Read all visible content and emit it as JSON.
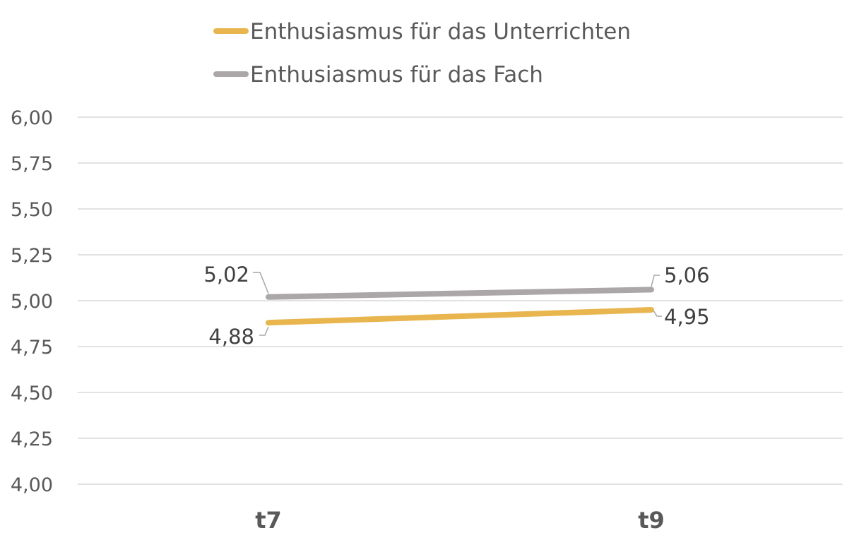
{
  "chart_data": {
    "type": "line",
    "title": "",
    "xlabel": "",
    "ylabel": "",
    "categories": [
      "t7",
      "t9"
    ],
    "ylim": [
      4.0,
      6.0
    ],
    "yticks": [
      4.0,
      4.25,
      4.5,
      4.75,
      5.0,
      5.25,
      5.5,
      5.75,
      6.0
    ],
    "ytick_labels": [
      "4,00",
      "4,25",
      "4,50",
      "4,75",
      "5,00",
      "5,25",
      "5,50",
      "5,75",
      "6,00"
    ],
    "grid": true,
    "legend_position": "top",
    "series": [
      {
        "name": "Enthusiasmus für das Unterrichten",
        "values": [
          4.88,
          4.95
        ],
        "labels": [
          "4,88",
          "4,95"
        ],
        "color": "#E8B54F"
      },
      {
        "name": "Enthusiasmus für das Fach",
        "values": [
          5.02,
          5.06
        ],
        "labels": [
          "5,02",
          "5,06"
        ],
        "color": "#ABA6A7"
      }
    ]
  }
}
